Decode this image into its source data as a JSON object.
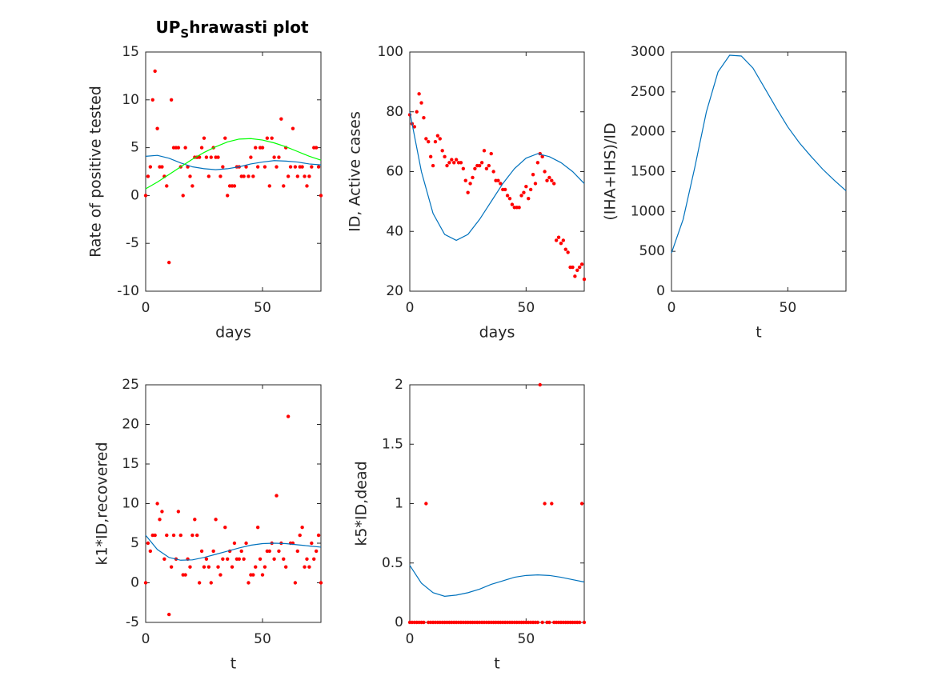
{
  "chart_data": [
    {
      "type": "line",
      "title": [
        "UP",
        "S",
        "hrawasti plot"
      ],
      "xlabel": "days",
      "ylabel": "Rate of positive tested",
      "xlim": [
        0,
        75
      ],
      "ylim": [
        -10,
        15
      ],
      "xticks": [
        0,
        50
      ],
      "yticks": [
        -10,
        -5,
        0,
        5,
        10,
        15
      ],
      "series": [
        {
          "color": "#ff0000",
          "marker": "dot",
          "x": [
            0,
            1,
            2,
            3,
            4,
            5,
            6,
            7,
            8,
            9,
            10,
            11,
            12,
            13,
            14,
            15,
            16,
            17,
            18,
            19,
            20,
            21,
            22,
            23,
            24,
            25,
            26,
            27,
            28,
            29,
            30,
            31,
            32,
            33,
            34,
            35,
            36,
            37,
            38,
            39,
            40,
            41,
            42,
            43,
            44,
            45,
            46,
            47,
            48,
            49,
            50,
            51,
            52,
            53,
            54,
            55,
            56,
            57,
            58,
            59,
            60,
            61,
            62,
            63,
            64,
            65,
            66,
            67,
            68,
            69,
            70,
            71,
            72,
            73,
            74,
            75
          ],
          "values": [
            0,
            2,
            3,
            10,
            13,
            7,
            3,
            3,
            2,
            1,
            -7,
            10,
            5,
            5,
            5,
            3,
            0,
            5,
            3,
            2,
            1,
            4,
            4,
            4,
            5,
            6,
            4,
            2,
            4,
            5,
            4,
            4,
            2,
            3,
            6,
            0,
            1,
            1,
            1,
            3,
            3,
            2,
            2,
            3,
            2,
            4,
            2,
            5,
            3,
            5,
            5,
            3,
            6,
            1,
            6,
            4,
            3,
            4,
            8,
            1,
            5,
            2,
            3,
            7,
            3,
            2,
            3,
            3,
            2,
            1,
            2,
            3,
            5,
            5,
            3,
            0
          ]
        },
        {
          "color": "#0072bd",
          "marker": "line",
          "x": [
            0,
            5,
            10,
            15,
            20,
            25,
            30,
            35,
            40,
            45,
            50,
            55,
            60,
            65,
            70,
            75
          ],
          "values": [
            4.1,
            4.2,
            3.9,
            3.4,
            3.0,
            2.8,
            2.7,
            2.8,
            3.0,
            3.3,
            3.5,
            3.65,
            3.6,
            3.5,
            3.3,
            3.2
          ]
        },
        {
          "color": "#00ff00",
          "marker": "line",
          "x": [
            0,
            5,
            10,
            15,
            20,
            25,
            30,
            35,
            40,
            45,
            50,
            55,
            60,
            65,
            70,
            75
          ],
          "values": [
            0.7,
            1.4,
            2.2,
            3.0,
            3.8,
            4.5,
            5.1,
            5.6,
            5.9,
            5.95,
            5.8,
            5.5,
            5.1,
            4.6,
            4.1,
            3.7
          ]
        }
      ]
    },
    {
      "type": "line",
      "xlabel": "days",
      "ylabel": "ID, Active cases",
      "xlim": [
        0,
        75
      ],
      "ylim": [
        20,
        100
      ],
      "xticks": [
        0,
        50
      ],
      "yticks": [
        20,
        40,
        60,
        80,
        100
      ],
      "series": [
        {
          "color": "#ff0000",
          "marker": "dot",
          "x": [
            0,
            1,
            2,
            3,
            4,
            5,
            6,
            7,
            8,
            9,
            10,
            11,
            12,
            13,
            14,
            15,
            16,
            17,
            18,
            19,
            20,
            21,
            22,
            23,
            24,
            25,
            26,
            27,
            28,
            29,
            30,
            31,
            32,
            33,
            34,
            35,
            36,
            37,
            38,
            39,
            40,
            41,
            42,
            43,
            44,
            45,
            46,
            47,
            48,
            49,
            50,
            51,
            52,
            53,
            54,
            55,
            56,
            57,
            58,
            59,
            60,
            61,
            62,
            63,
            64,
            65,
            66,
            67,
            68,
            69,
            70,
            71,
            72,
            73,
            74,
            75
          ],
          "values": [
            79,
            76,
            75,
            80,
            86,
            83,
            78,
            71,
            70,
            65,
            62,
            70,
            72,
            71,
            67,
            65,
            62,
            63,
            64,
            63,
            64,
            63,
            63,
            61,
            57,
            53,
            56,
            58,
            61,
            62,
            62,
            63,
            67,
            61,
            62,
            66,
            60,
            57,
            57,
            56,
            54,
            54,
            52,
            51,
            49,
            48,
            48,
            48,
            52,
            53,
            55,
            51,
            54,
            59,
            56,
            63,
            66,
            65,
            60,
            57,
            58,
            57,
            56,
            37,
            38,
            36,
            37,
            34,
            33,
            28,
            28,
            25,
            27,
            28,
            29,
            24
          ]
        },
        {
          "color": "#0072bd",
          "marker": "line",
          "x": [
            0,
            5,
            10,
            15,
            20,
            25,
            30,
            35,
            40,
            45,
            50,
            55,
            60,
            65,
            70,
            75
          ],
          "values": [
            80,
            60,
            46,
            39,
            37,
            39,
            44,
            50,
            56,
            61,
            64.5,
            66,
            65,
            63,
            60,
            56
          ]
        }
      ]
    },
    {
      "type": "line",
      "xlabel": "t",
      "ylabel": "(IHA+IHS)/ID",
      "xlim": [
        0,
        75
      ],
      "ylim": [
        0,
        3000
      ],
      "xticks": [
        0,
        50
      ],
      "yticks": [
        0,
        500,
        1000,
        1500,
        2000,
        2500,
        3000
      ],
      "series": [
        {
          "color": "#0072bd",
          "marker": "line",
          "x": [
            0,
            5,
            10,
            15,
            20,
            25,
            30,
            35,
            40,
            45,
            50,
            55,
            60,
            65,
            70,
            75
          ],
          "values": [
            480,
            900,
            1550,
            2250,
            2750,
            2960,
            2950,
            2800,
            2550,
            2300,
            2060,
            1860,
            1690,
            1530,
            1390,
            1260
          ]
        }
      ]
    },
    {
      "type": "line",
      "xlabel": "t",
      "ylabel": "k1*ID,recovered",
      "xlim": [
        0,
        75
      ],
      "ylim": [
        -5,
        25
      ],
      "xticks": [
        0,
        50
      ],
      "yticks": [
        -5,
        0,
        5,
        10,
        15,
        20,
        25
      ],
      "series": [
        {
          "color": "#ff0000",
          "marker": "dot",
          "x": [
            0,
            1,
            2,
            3,
            4,
            5,
            6,
            7,
            8,
            9,
            10,
            11,
            12,
            13,
            14,
            15,
            16,
            17,
            18,
            19,
            20,
            21,
            22,
            23,
            24,
            25,
            26,
            27,
            28,
            29,
            30,
            31,
            32,
            33,
            34,
            35,
            36,
            37,
            38,
            39,
            40,
            41,
            42,
            43,
            44,
            45,
            46,
            47,
            48,
            49,
            50,
            51,
            52,
            53,
            54,
            55,
            56,
            57,
            58,
            59,
            60,
            61,
            62,
            63,
            64,
            65,
            66,
            67,
            68,
            69,
            70,
            71,
            72,
            73,
            74,
            75
          ],
          "values": [
            0,
            5,
            4,
            6,
            6,
            10,
            8,
            9,
            3,
            6,
            -4,
            2,
            6,
            3,
            9,
            6,
            1,
            1,
            3,
            2,
            6,
            8,
            6,
            0,
            4,
            2,
            3,
            2,
            0,
            4,
            8,
            2,
            1,
            3,
            7,
            3,
            4,
            2,
            5,
            3,
            3,
            4,
            3,
            5,
            0,
            1,
            1,
            2,
            7,
            3,
            1,
            2,
            4,
            4,
            5,
            3,
            11,
            4,
            5,
            3,
            2,
            21,
            5,
            5,
            0,
            4,
            6,
            7,
            2,
            3,
            2,
            5,
            3,
            4,
            6,
            0
          ]
        },
        {
          "color": "#0072bd",
          "marker": "line",
          "x": [
            0,
            5,
            10,
            15,
            20,
            25,
            30,
            35,
            40,
            45,
            50,
            55,
            60,
            65,
            70,
            75
          ],
          "values": [
            6.0,
            4.2,
            3.2,
            2.85,
            2.9,
            3.2,
            3.6,
            4.0,
            4.4,
            4.75,
            4.95,
            5.0,
            4.95,
            4.8,
            4.65,
            4.5
          ]
        }
      ]
    },
    {
      "type": "line",
      "xlabel": "t",
      "ylabel": "k5*ID,dead",
      "xlim": [
        0,
        75
      ],
      "ylim": [
        0,
        2
      ],
      "xticks": [
        0,
        50
      ],
      "yticks": [
        0,
        0.5,
        1,
        1.5,
        2
      ],
      "series": [
        {
          "color": "#ff0000",
          "marker": "dot",
          "x": [
            0,
            1,
            2,
            3,
            4,
            5,
            6,
            7,
            8,
            9,
            10,
            11,
            12,
            13,
            14,
            15,
            16,
            17,
            18,
            19,
            20,
            21,
            22,
            23,
            24,
            25,
            26,
            27,
            28,
            29,
            30,
            31,
            32,
            33,
            34,
            35,
            36,
            37,
            38,
            39,
            40,
            41,
            42,
            43,
            44,
            45,
            46,
            47,
            48,
            49,
            50,
            51,
            52,
            53,
            54,
            55,
            56,
            57,
            58,
            59,
            60,
            61,
            62,
            63,
            64,
            65,
            66,
            67,
            68,
            69,
            70,
            71,
            72,
            73,
            74,
            75
          ],
          "values": [
            0,
            0,
            0,
            0,
            0,
            0,
            0,
            1,
            0,
            0,
            0,
            0,
            0,
            0,
            0,
            0,
            0,
            0,
            0,
            0,
            0,
            0,
            0,
            0,
            0,
            0,
            0,
            0,
            0,
            0,
            0,
            0,
            0,
            0,
            0,
            0,
            0,
            0,
            0,
            0,
            0,
            0,
            0,
            0,
            0,
            0,
            0,
            0,
            0,
            0,
            0,
            0,
            0,
            0,
            0,
            0,
            2,
            0,
            1,
            0,
            0,
            1,
            0,
            0,
            0,
            0,
            0,
            0,
            0,
            0,
            0,
            0,
            0,
            0,
            1,
            0
          ]
        },
        {
          "color": "#0072bd",
          "marker": "line",
          "x": [
            0,
            5,
            10,
            15,
            20,
            25,
            30,
            35,
            40,
            45,
            50,
            55,
            60,
            65,
            70,
            75
          ],
          "values": [
            0.48,
            0.33,
            0.25,
            0.22,
            0.23,
            0.25,
            0.28,
            0.32,
            0.35,
            0.38,
            0.395,
            0.4,
            0.395,
            0.38,
            0.36,
            0.34
          ]
        }
      ]
    }
  ]
}
